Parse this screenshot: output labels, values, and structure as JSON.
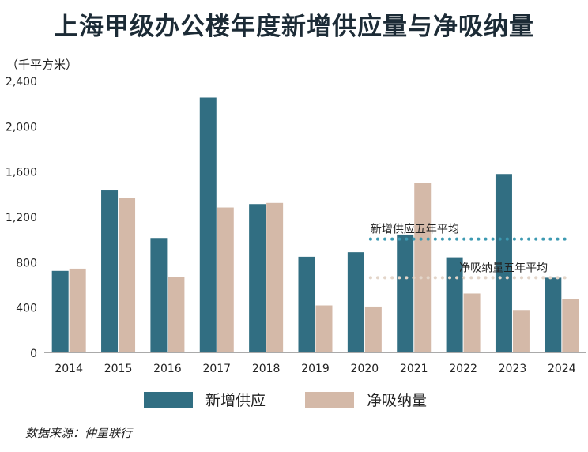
{
  "chart_data": {
    "type": "bar",
    "title": "上海甲级办公楼年度新增供应量与净吸纳量",
    "ylabel": "（千平方米）",
    "categories": [
      "2014",
      "2015",
      "2016",
      "2017",
      "2018",
      "2019",
      "2020",
      "2021",
      "2022",
      "2023",
      "2024"
    ],
    "series": [
      {
        "name": "新增供应",
        "color": "#316e82",
        "values": [
          720,
          1430,
          1010,
          2250,
          1310,
          845,
          885,
          1040,
          840,
          1575,
          660
        ]
      },
      {
        "name": "净吸纳量",
        "color": "#d4b9a8",
        "values": [
          740,
          1365,
          665,
          1280,
          1320,
          415,
          405,
          1500,
          520,
          375,
          470
        ]
      }
    ],
    "ylim": [
      0,
      2400
    ],
    "yticks": [
      "0",
      "400",
      "800",
      "1,200",
      "1,600",
      "2,000",
      "2,400"
    ],
    "ytick_values": [
      0,
      400,
      800,
      1200,
      1600,
      2000,
      2400
    ],
    "grid": false,
    "legend_position": "bottom",
    "reference_lines": [
      {
        "label": "新增供应五年平均",
        "value": 1000,
        "color": "#3d9ab2"
      },
      {
        "label": "净吸纳量五年平均",
        "value": 660,
        "color": "#e3d5c9"
      }
    ]
  },
  "unit_label": "（千平方米）",
  "source": "数据来源：仲量联行"
}
